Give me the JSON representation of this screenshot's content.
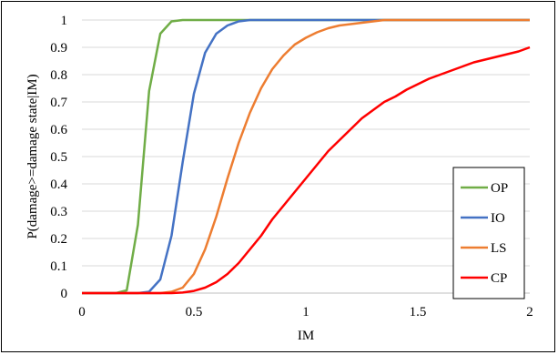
{
  "chart_data": {
    "type": "line",
    "xlabel": "IM",
    "ylabel": "P(damage>=damage state|IM)",
    "xlim": [
      0,
      2
    ],
    "ylim": [
      0,
      1
    ],
    "x_ticks": [
      "0",
      "0.5",
      "1",
      "1.5",
      "2"
    ],
    "y_ticks": [
      "0",
      "0.1",
      "0.2",
      "0.3",
      "0.4",
      "0.5",
      "0.6",
      "0.7",
      "0.8",
      "0.9",
      "1"
    ],
    "grid": "horizontal",
    "legend_position": "bottom-right",
    "x": [
      0,
      0.05,
      0.1,
      0.15,
      0.2,
      0.25,
      0.3,
      0.35,
      0.4,
      0.45,
      0.5,
      0.55,
      0.6,
      0.65,
      0.7,
      0.75,
      0.8,
      0.85,
      0.9,
      0.95,
      1.0,
      1.05,
      1.1,
      1.15,
      1.2,
      1.25,
      1.3,
      1.35,
      1.4,
      1.45,
      1.5,
      1.55,
      1.6,
      1.65,
      1.7,
      1.75,
      1.8,
      1.85,
      1.9,
      1.95,
      2.0
    ],
    "series": [
      {
        "name": "OP",
        "color": "#70ad47",
        "values": [
          0,
          0,
          0,
          0,
          0.01,
          0.25,
          0.74,
          0.95,
          0.995,
          1,
          1,
          1,
          1,
          1,
          1,
          1,
          1,
          1,
          1,
          1,
          1,
          1,
          1,
          1,
          1,
          1,
          1,
          1,
          1,
          1,
          1,
          1,
          1,
          1,
          1,
          1,
          1,
          1,
          1,
          1,
          1
        ]
      },
      {
        "name": "IO",
        "color": "#4472c4",
        "values": [
          0,
          0,
          0,
          0,
          0,
          0,
          0.005,
          0.05,
          0.21,
          0.48,
          0.73,
          0.88,
          0.95,
          0.98,
          0.995,
          1,
          1,
          1,
          1,
          1,
          1,
          1,
          1,
          1,
          1,
          1,
          1,
          1,
          1,
          1,
          1,
          1,
          1,
          1,
          1,
          1,
          1,
          1,
          1,
          1,
          1
        ]
      },
      {
        "name": "LS",
        "color": "#ed7d31",
        "values": [
          0,
          0,
          0,
          0,
          0,
          0,
          0,
          0,
          0.005,
          0.02,
          0.07,
          0.16,
          0.28,
          0.42,
          0.55,
          0.66,
          0.75,
          0.82,
          0.87,
          0.91,
          0.935,
          0.955,
          0.97,
          0.98,
          0.985,
          0.99,
          0.995,
          1,
          1,
          1,
          1,
          1,
          1,
          1,
          1,
          1,
          1,
          1,
          1,
          1,
          1
        ]
      },
      {
        "name": "CP",
        "color": "#ff0000",
        "values": [
          0,
          0,
          0,
          0,
          0,
          0,
          0,
          0,
          0,
          0.002,
          0.008,
          0.02,
          0.04,
          0.07,
          0.11,
          0.16,
          0.21,
          0.27,
          0.32,
          0.37,
          0.42,
          0.47,
          0.52,
          0.56,
          0.6,
          0.64,
          0.67,
          0.7,
          0.72,
          0.745,
          0.765,
          0.785,
          0.8,
          0.815,
          0.83,
          0.845,
          0.855,
          0.865,
          0.875,
          0.885,
          0.9
        ]
      }
    ]
  }
}
